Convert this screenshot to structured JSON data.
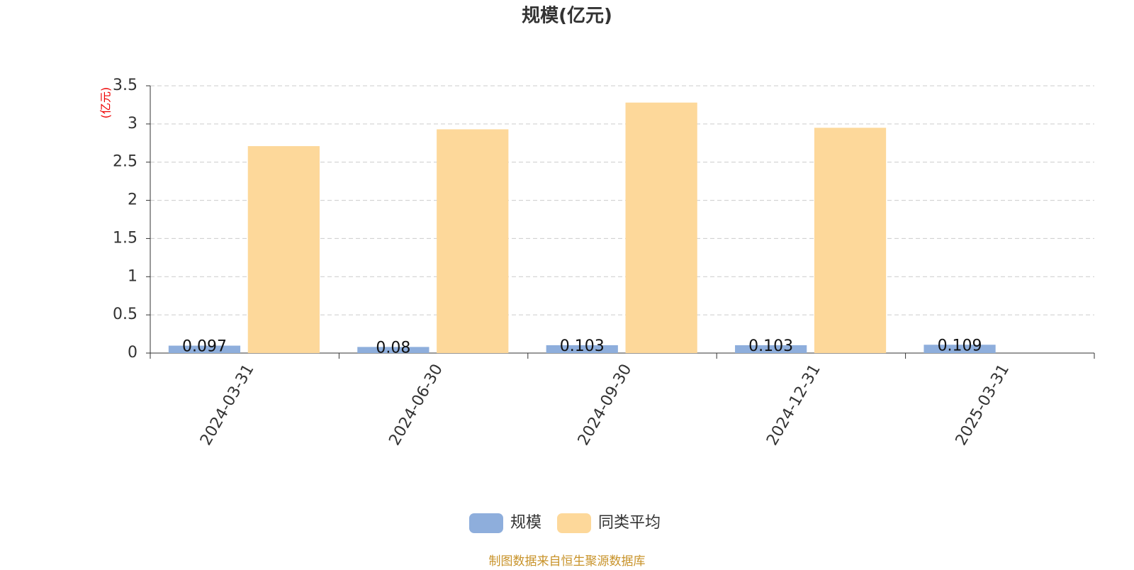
{
  "chart_data": {
    "type": "bar",
    "title": "规模(亿元)",
    "y_label": "(亿元)",
    "categories": [
      "2024-03-31",
      "2024-06-30",
      "2024-09-30",
      "2024-12-31",
      "2025-03-31"
    ],
    "series": [
      {
        "name": "规模",
        "color": "#8eaedc",
        "values": [
          0.097,
          0.08,
          0.103,
          0.103,
          0.109
        ],
        "show_labels": true
      },
      {
        "name": "同类平均",
        "color": "#fdd89a",
        "values": [
          2.71,
          2.93,
          3.28,
          2.95,
          null
        ]
      }
    ],
    "ylim": [
      0,
      3.5
    ],
    "yticks": [
      0,
      0.5,
      1,
      1.5,
      2,
      2.5,
      3,
      3.5
    ],
    "grid": true,
    "source": "制图数据来自恒生聚源数据库"
  }
}
